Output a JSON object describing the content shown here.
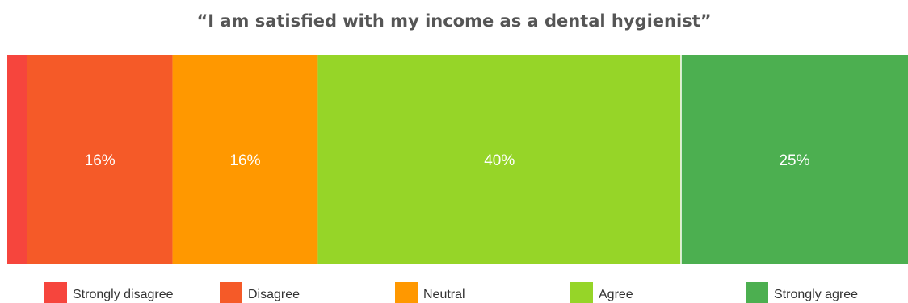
{
  "chart_data": {
    "type": "bar",
    "orientation": "horizontal-stacked",
    "title": "“I am satisfied with my income as a dental hygienist”",
    "categories": [
      "Strongly disagree",
      "Disagree",
      "Neutral",
      "Agree",
      "Strongly agree"
    ],
    "values": [
      2.2,
      16,
      16,
      40,
      25
    ],
    "value_labels": [
      "",
      "16%",
      "16%",
      "40%",
      "25%"
    ],
    "colors": [
      "#f6453d",
      "#f55a28",
      "#ff9800",
      "#96d528",
      "#4caf50"
    ],
    "legend_position": "bottom",
    "grid": false
  }
}
